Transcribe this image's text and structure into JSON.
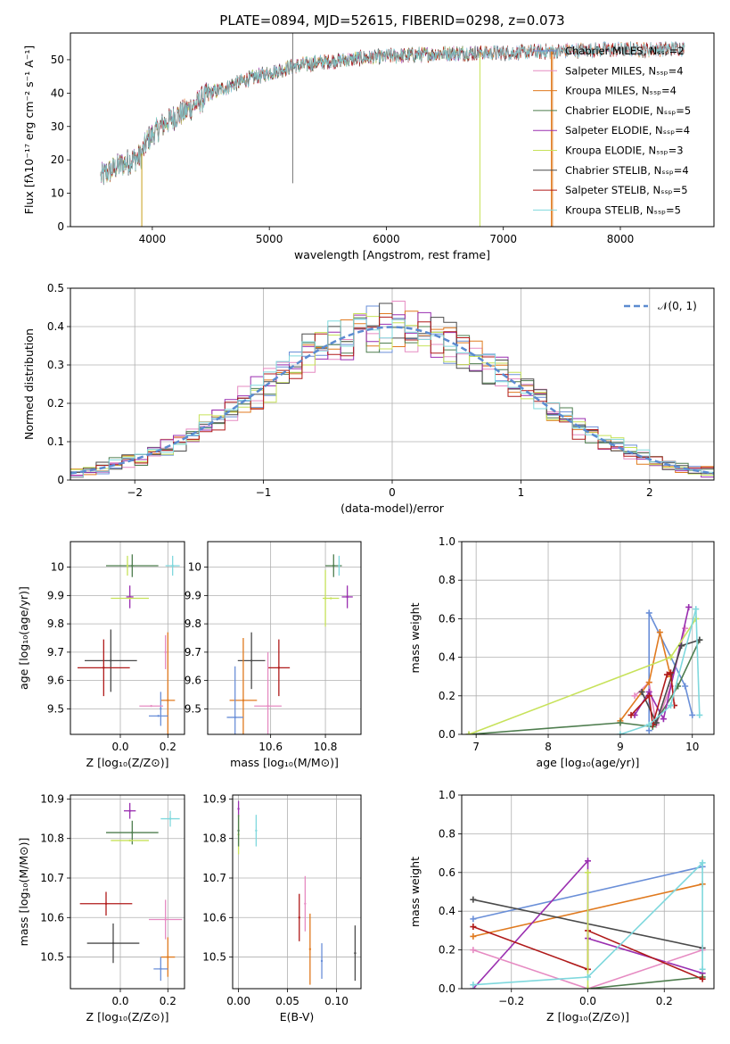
{
  "figure": {
    "title": "PLATE=0894, MJD=52615, FIBERID=0298, z=0.073"
  },
  "chart_data": [
    {
      "id": "spectrum",
      "type": "line",
      "xlabel": "wavelength [Angstrom, rest frame]",
      "ylabel": "Flux [fλ10⁻¹⁷ erg cm⁻² s⁻¹ A⁻¹]",
      "xlim": [
        3300,
        8800
      ],
      "ylim": [
        0,
        58
      ],
      "xticks": [
        4000,
        5000,
        6000,
        7000,
        8000
      ],
      "yticks": [
        0,
        10,
        20,
        30,
        40,
        50
      ],
      "grid": false,
      "legend_position": "upper-right",
      "continuum": {
        "x": [
          3560,
          3700,
          3900,
          3960,
          4100,
          4300,
          4500,
          4800,
          5000,
          5200,
          5500,
          5800,
          6000,
          6300,
          6600,
          7000,
          7400,
          7800,
          8200,
          8600
        ],
        "y": [
          15,
          18,
          21,
          26,
          31,
          35,
          40,
          44,
          46,
          48,
          49.5,
          50.5,
          51,
          51.5,
          52,
          52,
          52.5,
          53,
          53,
          53.5
        ]
      },
      "series": [
        {
          "name": "Chabrier MILES, N_SSP=2",
          "color": "#6a8fd8",
          "xmax": 8550
        },
        {
          "name": "Salpeter MILES, N_SSP=4",
          "color": "#e68bc2",
          "xmax": 8550
        },
        {
          "name": "Kroupa MILES, N_SSP=4",
          "color": "#e07a1f",
          "xmax": 8550
        },
        {
          "name": "Chabrier ELODIE, N_SSP=5",
          "color": "#4e7d4e",
          "xmax": 6800
        },
        {
          "name": "Salpeter ELODIE, N_SSP=4",
          "color": "#9a2fb0",
          "xmax": 6800
        },
        {
          "name": "Kroupa ELODIE, N_SSP=3",
          "color": "#c7e25a",
          "xmax": 6800
        },
        {
          "name": "Chabrier STELIB, N_SSP=4",
          "color": "#4a4a4a",
          "xmax": 8550
        },
        {
          "name": "Salpeter STELIB, N_SSP=5",
          "color": "#b01a1a",
          "xmax": 8550
        },
        {
          "name": "Kroupa STELIB, N_SSP=5",
          "color": "#7fd8dd",
          "xmax": 8550
        }
      ],
      "spikes": [
        {
          "x": 3910,
          "ymin": 0
        },
        {
          "x": 5200,
          "ymin": 13
        },
        {
          "x": 5200,
          "ymax": 58
        },
        {
          "x": 6800,
          "ymin": 0
        },
        {
          "x": 7410,
          "ymin": 0
        },
        {
          "x": 7420,
          "ymin": 0
        }
      ]
    },
    {
      "id": "residuals",
      "type": "histogram",
      "xlabel": "(data-model)/error",
      "ylabel": "Normed distribution",
      "xlim": [
        -2.5,
        2.5
      ],
      "ylim": [
        0,
        0.5
      ],
      "xticks": [
        -2,
        -1,
        0,
        1,
        2
      ],
      "yticks": [
        0,
        0.1,
        0.2,
        0.3,
        0.4,
        0.5
      ],
      "grid": true,
      "legend_position": "upper-right",
      "legend": "𝒩(0, 1)",
      "bin_width": 0.1
    },
    {
      "id": "age-vs-Z",
      "type": "errorbar",
      "xlabel": "Z [log₁₀(Z/Z⊙)]",
      "ylabel": "age  [log₁₀(age/yr)]",
      "xlim": [
        -0.21,
        0.27
      ],
      "ylim": [
        9.41,
        10.09
      ],
      "xticks": [
        0.0,
        0.2
      ],
      "xticklabels": [
        "0.0",
        "0.2"
      ],
      "yticks": [
        9.5,
        9.6,
        9.7,
        9.8,
        9.9,
        10.0
      ],
      "grid": true,
      "points": [
        {
          "x": 0.05,
          "y": 10.005,
          "dx": 0.11,
          "dy": 0.04,
          "color": "#4e7d4e"
        },
        {
          "x": 0.03,
          "y": 10.005,
          "dx": 0.0,
          "dy": 0.035,
          "color": "#c7e25a"
        },
        {
          "x": 0.22,
          "y": 10.005,
          "dx": 0.03,
          "dy": 0.035,
          "color": "#7fd8dd"
        },
        {
          "x": 0.04,
          "y": 9.895,
          "dx": 0.015,
          "dy": 0.04,
          "color": "#9a2fb0"
        },
        {
          "x": 0.04,
          "y": 9.89,
          "dx": 0.08,
          "dy": 0.0,
          "color": "#c7e25a"
        },
        {
          "x": -0.04,
          "y": 9.67,
          "dx": 0.11,
          "dy": 0.11,
          "color": "#4a4a4a"
        },
        {
          "x": -0.07,
          "y": 9.645,
          "dx": 0.11,
          "dy": 0.1,
          "color": "#b01a1a"
        },
        {
          "x": 0.19,
          "y": 9.7,
          "dx": 0.0,
          "dy": 0.06,
          "color": "#e68bc2"
        },
        {
          "x": 0.2,
          "y": 9.53,
          "dx": 0.03,
          "dy": 0.24,
          "color": "#e07a1f"
        },
        {
          "x": 0.17,
          "y": 9.5,
          "dx": 0.0,
          "dy": 0.06,
          "color": "#6a8fd8"
        },
        {
          "x": 0.13,
          "y": 9.51,
          "dx": 0.05,
          "dy": 0.0,
          "color": "#e68bc2"
        },
        {
          "x": 0.16,
          "y": 9.475,
          "dx": 0.04,
          "dy": 0.0,
          "color": "#6a8fd8"
        }
      ]
    },
    {
      "id": "age-vs-mass",
      "type": "errorbar",
      "xlabel": "mass [log₁₀(M/M⊙)]",
      "ylabel": "",
      "xlim": [
        10.37,
        10.93
      ],
      "ylim": [
        9.41,
        10.09
      ],
      "xticks": [
        10.6,
        10.8
      ],
      "xticklabels": [
        "10.6",
        "10.8"
      ],
      "yticks": [
        9.5,
        9.6,
        9.7,
        9.8,
        9.9,
        10.0
      ],
      "grid": true,
      "points": [
        {
          "x": 10.83,
          "y": 10.005,
          "dx": 0.03,
          "dy": 0.04,
          "color": "#4e7d4e"
        },
        {
          "x": 10.85,
          "y": 10.005,
          "dx": 0.0,
          "dy": 0.035,
          "color": "#7fd8dd"
        },
        {
          "x": 10.8,
          "y": 9.89,
          "dx": 0.0,
          "dy": 0.1,
          "color": "#c7e25a"
        },
        {
          "x": 10.82,
          "y": 9.89,
          "dx": 0.03,
          "dy": 0.0,
          "color": "#c7e25a"
        },
        {
          "x": 10.88,
          "y": 9.895,
          "dx": 0.02,
          "dy": 0.04,
          "color": "#9a2fb0"
        },
        {
          "x": 10.53,
          "y": 9.67,
          "dx": 0.05,
          "dy": 0.1,
          "color": "#4a4a4a"
        },
        {
          "x": 10.63,
          "y": 9.645,
          "dx": 0.04,
          "dy": 0.1,
          "color": "#b01a1a"
        },
        {
          "x": 10.5,
          "y": 9.53,
          "dx": 0.05,
          "dy": 0.22,
          "color": "#e07a1f"
        },
        {
          "x": 10.59,
          "y": 9.51,
          "dx": 0.05,
          "dy": 0.19,
          "color": "#e68bc2"
        },
        {
          "x": 10.47,
          "y": 9.47,
          "dx": 0.03,
          "dy": 0.18,
          "color": "#6a8fd8"
        }
      ]
    },
    {
      "id": "weight-vs-age",
      "type": "line",
      "xlabel": "age  [log₁₀(age/yr)]",
      "ylabel": "mass weight",
      "xlim": [
        6.8,
        10.3
      ],
      "ylim": [
        0,
        1
      ],
      "xticks": [
        7,
        8,
        9,
        10
      ],
      "yticks": [
        0,
        0.2,
        0.4,
        0.6,
        0.8,
        1.0
      ],
      "yticklabels": [
        "0.0",
        "0.2",
        "0.4",
        "0.6",
        "0.8",
        "1.0"
      ],
      "grid": true,
      "series": [
        {
          "color": "#6a8fd8",
          "points": [
            [
              9.4,
              0.02
            ],
            [
              9.4,
              0.63
            ],
            [
              9.9,
              0.25
            ],
            [
              10.0,
              0.1
            ]
          ]
        },
        {
          "color": "#e68bc2",
          "points": [
            [
              9.2,
              0.2
            ],
            [
              9.4,
              0.27
            ],
            [
              9.5,
              0.05
            ],
            [
              9.7,
              0.25
            ],
            [
              9.9,
              0.55
            ]
          ]
        },
        {
          "color": "#e07a1f",
          "points": [
            [
              9.0,
              0.07
            ],
            [
              9.4,
              0.27
            ],
            [
              9.55,
              0.53
            ],
            [
              9.7,
              0.3
            ]
          ]
        },
        {
          "color": "#4e7d4e",
          "points": [
            [
              6.9,
              0.0
            ],
            [
              9.0,
              0.06
            ],
            [
              9.45,
              0.04
            ],
            [
              9.8,
              0.25
            ],
            [
              10.1,
              0.49
            ]
          ]
        },
        {
          "color": "#9a2fb0",
          "points": [
            [
              9.2,
              0.1
            ],
            [
              9.4,
              0.22
            ],
            [
              9.6,
              0.08
            ],
            [
              9.95,
              0.66
            ]
          ]
        },
        {
          "color": "#c7e25a",
          "points": [
            [
              6.9,
              0.0
            ],
            [
              9.7,
              0.4
            ],
            [
              10.05,
              0.6
            ]
          ]
        },
        {
          "color": "#4a4a4a",
          "points": [
            [
              9.3,
              0.22
            ],
            [
              9.5,
              0.06
            ],
            [
              9.85,
              0.46
            ],
            [
              10.1,
              0.49
            ]
          ]
        },
        {
          "color": "#b01a1a",
          "points": [
            [
              9.15,
              0.1
            ],
            [
              9.4,
              0.2
            ],
            [
              9.45,
              0.05
            ],
            [
              9.65,
              0.31
            ],
            [
              9.7,
              0.32
            ],
            [
              9.75,
              0.15
            ]
          ]
        },
        {
          "color": "#7fd8dd",
          "points": [
            [
              9.0,
              0.0
            ],
            [
              9.4,
              0.05
            ],
            [
              9.7,
              0.15
            ],
            [
              10.05,
              0.65
            ],
            [
              10.1,
              0.1
            ]
          ]
        }
      ]
    },
    {
      "id": "mass-vs-Z",
      "type": "errorbar",
      "xlabel": "Z [log₁₀(Z/Z⊙)]",
      "ylabel": "mass [log₁₀(M/M⊙)]",
      "xlim": [
        -0.21,
        0.27
      ],
      "ylim": [
        10.42,
        10.91
      ],
      "xticks": [
        0.0,
        0.2
      ],
      "xticklabels": [
        "0.0",
        "0.2"
      ],
      "yticks": [
        10.5,
        10.6,
        10.7,
        10.8,
        10.9
      ],
      "grid": true,
      "points": [
        {
          "x": 0.04,
          "y": 10.87,
          "dx": 0.025,
          "dy": 0.02,
          "color": "#9a2fb0"
        },
        {
          "x": 0.21,
          "y": 10.85,
          "dx": 0.04,
          "dy": 0.02,
          "color": "#7fd8dd"
        },
        {
          "x": 0.05,
          "y": 10.815,
          "dx": 0.11,
          "dy": 0.03,
          "color": "#4e7d4e"
        },
        {
          "x": 0.04,
          "y": 10.795,
          "dx": 0.08,
          "dy": 0.0,
          "color": "#c7e25a"
        },
        {
          "x": -0.06,
          "y": 10.635,
          "dx": 0.11,
          "dy": 0.03,
          "color": "#b01a1a"
        },
        {
          "x": 0.19,
          "y": 10.595,
          "dx": 0.07,
          "dy": 0.05,
          "color": "#e68bc2"
        },
        {
          "x": -0.03,
          "y": 10.535,
          "dx": 0.11,
          "dy": 0.05,
          "color": "#4a4a4a"
        },
        {
          "x": 0.2,
          "y": 10.5,
          "dx": 0.03,
          "dy": 0.05,
          "color": "#e07a1f"
        },
        {
          "x": 0.17,
          "y": 10.47,
          "dx": 0.03,
          "dy": 0.03,
          "color": "#6a8fd8"
        }
      ]
    },
    {
      "id": "mass-vs-ebv",
      "type": "errorbar",
      "xlabel": "E(B-V)",
      "ylabel": "",
      "xlim": [
        -0.006,
        0.125
      ],
      "ylim": [
        10.42,
        10.91
      ],
      "xticks": [
        0.0,
        0.05,
        0.1
      ],
      "xticklabels": [
        "0.00",
        "0.05",
        "0.10"
      ],
      "yticks": [
        10.5,
        10.6,
        10.7,
        10.8,
        10.9
      ],
      "grid": true,
      "points": [
        {
          "x": 0.0,
          "y": 10.875,
          "dx": 0.0,
          "dy": 0.02,
          "color": "#9a2fb0"
        },
        {
          "x": 0.0,
          "y": 10.81,
          "dx": 0.0,
          "dy": 0.05,
          "color": "#c7e25a"
        },
        {
          "x": 0.0,
          "y": 10.82,
          "dx": 0.0,
          "dy": 0.04,
          "color": "#4e7d4e"
        },
        {
          "x": 0.018,
          "y": 10.82,
          "dx": 0.0,
          "dy": 0.04,
          "color": "#7fd8dd"
        },
        {
          "x": 0.062,
          "y": 10.6,
          "dx": 0.0,
          "dy": 0.06,
          "color": "#b01a1a"
        },
        {
          "x": 0.068,
          "y": 10.635,
          "dx": 0.0,
          "dy": 0.07,
          "color": "#e68bc2"
        },
        {
          "x": 0.073,
          "y": 10.52,
          "dx": 0.0,
          "dy": 0.09,
          "color": "#e07a1f"
        },
        {
          "x": 0.085,
          "y": 10.49,
          "dx": 0.0,
          "dy": 0.045,
          "color": "#6a8fd8"
        },
        {
          "x": 0.119,
          "y": 10.51,
          "dx": 0.0,
          "dy": 0.07,
          "color": "#4a4a4a"
        }
      ]
    },
    {
      "id": "weight-vs-Z",
      "type": "line",
      "xlabel": "Z [log₁₀(Z/Z⊙)]",
      "ylabel": "mass weight",
      "xlim": [
        -0.33,
        0.33
      ],
      "ylim": [
        0,
        1
      ],
      "xticks": [
        -0.2,
        0.0,
        0.2
      ],
      "xticklabels": [
        "−0.2",
        "0.0",
        "0.2"
      ],
      "yticks": [
        0,
        0.2,
        0.4,
        0.6,
        0.8,
        1.0
      ],
      "yticklabels": [
        "0.0",
        "0.2",
        "0.4",
        "0.6",
        "0.8",
        "1.0"
      ],
      "grid": true,
      "series": [
        {
          "color": "#6a8fd8",
          "points": [
            [
              -0.3,
              0.36
            ],
            [
              0.3,
              0.63
            ]
          ]
        },
        {
          "color": "#e07a1f",
          "points": [
            [
              -0.3,
              0.27
            ],
            [
              0.3,
              0.54
            ]
          ]
        },
        {
          "color": "#4a4a4a",
          "points": [
            [
              -0.3,
              0.46
            ],
            [
              0.3,
              0.21
            ]
          ]
        },
        {
          "color": "#9a2fb0",
          "points": [
            [
              -0.3,
              0.0
            ],
            [
              0.0,
              0.66
            ],
            [
              0.0,
              0.26
            ],
            [
              0.3,
              0.08
            ]
          ]
        },
        {
          "color": "#e68bc2",
          "points": [
            [
              -0.3,
              0.2
            ],
            [
              0.0,
              0.0
            ],
            [
              0.3,
              0.2
            ]
          ]
        },
        {
          "color": "#4e7d4e",
          "points": [
            [
              0.0,
              0.0
            ],
            [
              0.3,
              0.06
            ]
          ]
        },
        {
          "color": "#b01a1a",
          "points": [
            [
              -0.3,
              0.32
            ],
            [
              0.0,
              0.1
            ],
            [
              0.0,
              0.3
            ],
            [
              0.3,
              0.05
            ]
          ]
        },
        {
          "color": "#c7e25a",
          "points": [
            [
              0.0,
              0.0
            ],
            [
              0.0,
              0.6
            ]
          ]
        },
        {
          "color": "#7fd8dd",
          "points": [
            [
              -0.3,
              0.02
            ],
            [
              0.0,
              0.06
            ],
            [
              0.3,
              0.65
            ],
            [
              0.3,
              0.1
            ]
          ]
        }
      ]
    }
  ]
}
